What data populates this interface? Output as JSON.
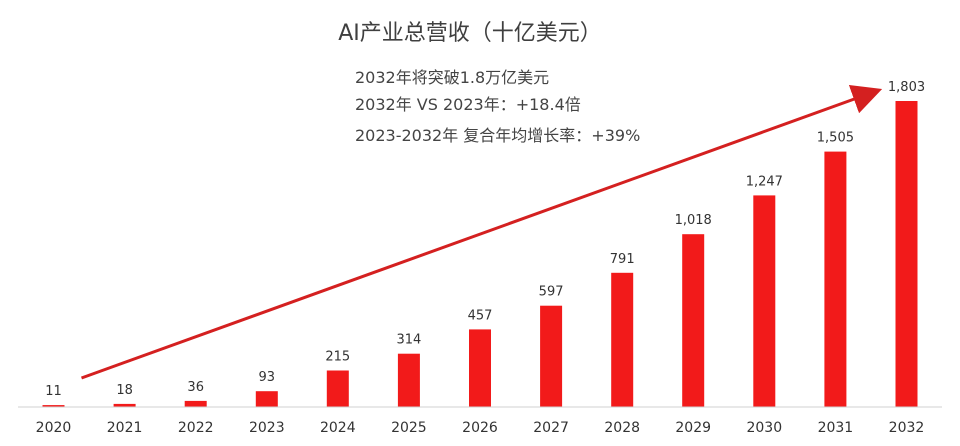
{
  "chart_data": {
    "type": "bar",
    "title": "AI产业总营收（十亿美元）",
    "categories": [
      "2020",
      "2021",
      "2022",
      "2023",
      "2024",
      "2025",
      "2026",
      "2027",
      "2028",
      "2029",
      "2030",
      "2031",
      "2032"
    ],
    "values": [
      11,
      18,
      36,
      93,
      215,
      314,
      457,
      597,
      791,
      1018,
      1247,
      1505,
      1803
    ],
    "value_labels": [
      "11",
      "18",
      "36",
      "93",
      "215",
      "314",
      "457",
      "597",
      "791",
      "1,018",
      "1,247",
      "1,505",
      "1,803"
    ],
    "xlabel": "",
    "ylabel": "",
    "ylim": [
      0,
      1803
    ],
    "grid": false,
    "annotations": [
      "2032年将突破1.8万亿美元",
      "2032年 VS 2023年：+18.4倍",
      "2023-2032年  复合年均增长率：+39%"
    ],
    "trend_arrow": {
      "from_category": "2020",
      "to_category": "2032"
    },
    "colors": {
      "bar": "#f21a1a",
      "arrow": "#d42020",
      "axis": "#d0d0d0",
      "text": "#333333"
    }
  }
}
